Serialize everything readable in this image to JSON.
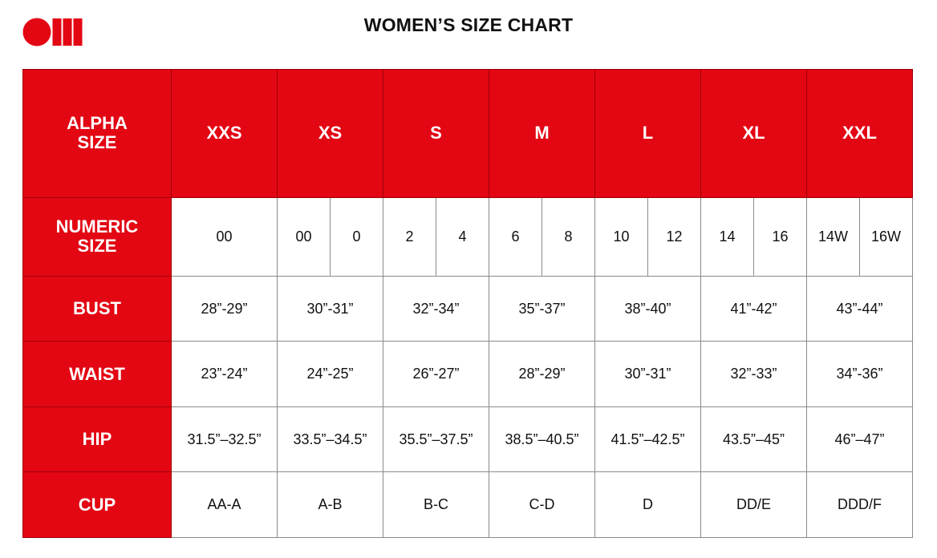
{
  "title": "WOMEN’S SIZE CHART",
  "logo": {
    "color": "#e30613",
    "label": "OIII"
  },
  "colors": {
    "header_bg": "#e30613",
    "header_text": "#ffffff"
  },
  "table": {
    "corner_label": "ALPHA SIZE",
    "alpha_sizes": [
      "XXS",
      "XS",
      "S",
      "M",
      "L",
      "XL",
      "XXL"
    ],
    "rows": [
      {
        "label": "NUMERIC SIZE",
        "cells": [
          [
            "00"
          ],
          [
            "00",
            "0"
          ],
          [
            "2",
            "4"
          ],
          [
            "6",
            "8"
          ],
          [
            "10",
            "12"
          ],
          [
            "14",
            "16"
          ],
          [
            "14W",
            "16W"
          ]
        ]
      },
      {
        "label": "BUST",
        "cells": [
          [
            "28”-29”"
          ],
          [
            "30”-31”"
          ],
          [
            "32”-34”"
          ],
          [
            "35”-37”"
          ],
          [
            "38”-40”"
          ],
          [
            "41”-42”"
          ],
          [
            "43”-44”"
          ]
        ]
      },
      {
        "label": "WAIST",
        "cells": [
          [
            "23”-24”"
          ],
          [
            "24”-25”"
          ],
          [
            "26”-27”"
          ],
          [
            "28”-29”"
          ],
          [
            "30”-31”"
          ],
          [
            "32”-33”"
          ],
          [
            "34”-36”"
          ]
        ]
      },
      {
        "label": "HIP",
        "cells": [
          [
            "31.5”–32.5”"
          ],
          [
            "33.5”–34.5”"
          ],
          [
            "35.5”–37.5”"
          ],
          [
            "38.5”–40.5”"
          ],
          [
            "41.5”–42.5”"
          ],
          [
            "43.5”–45”"
          ],
          [
            "46”–47”"
          ]
        ]
      },
      {
        "label": "CUP",
        "cells": [
          [
            "AA-A"
          ],
          [
            "A-B"
          ],
          [
            "B-C"
          ],
          [
            "C-D"
          ],
          [
            "D"
          ],
          [
            "DD/E"
          ],
          [
            "DDD/F"
          ]
        ]
      }
    ]
  }
}
